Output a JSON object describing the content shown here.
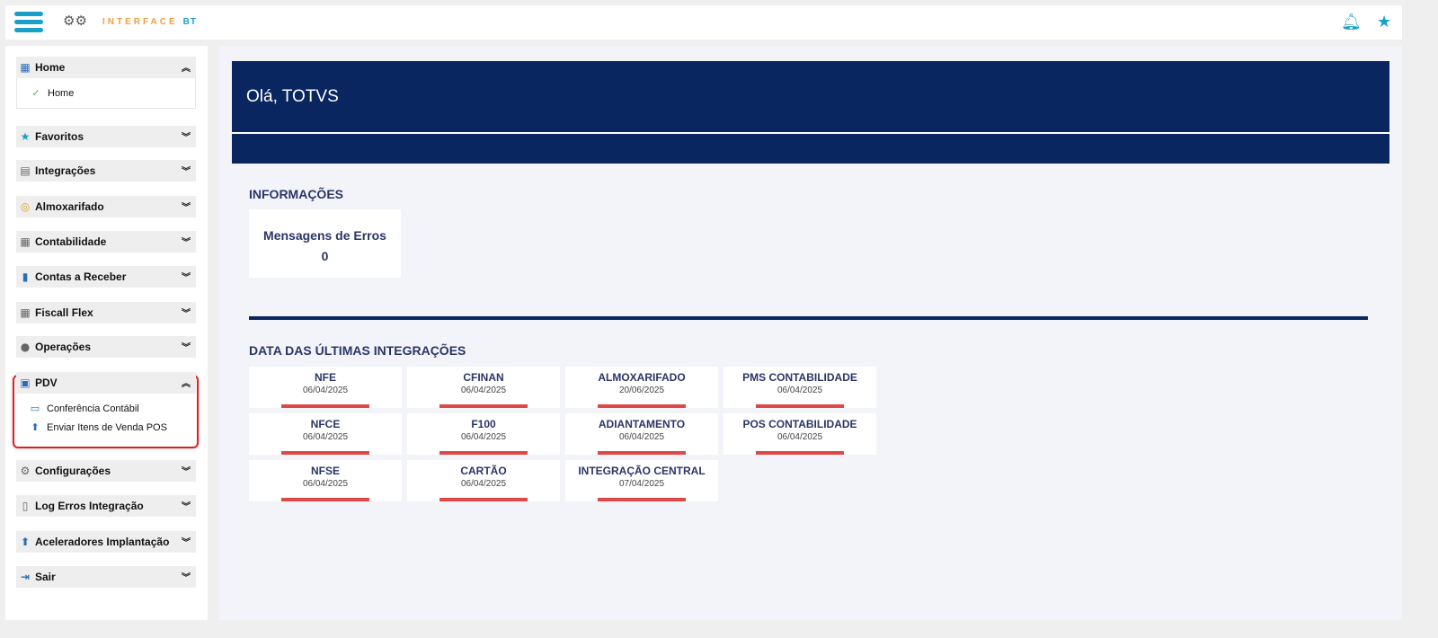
{
  "header": {
    "brand": "INTERFACE",
    "brand_suffix": "BT",
    "icons": [
      "menu-icon",
      "bell-icon",
      "star-icon"
    ]
  },
  "sidebar": {
    "sections": [
      {
        "label": "Home",
        "icon": "building-icon",
        "expanded": true,
        "items": [
          {
            "label": "Home",
            "icon": "check-icon"
          }
        ]
      },
      {
        "label": "Favoritos",
        "icon": "star-icon"
      },
      {
        "label": "Integrações",
        "icon": "table-icon"
      },
      {
        "label": "Almoxarifado",
        "icon": "coins-icon"
      },
      {
        "label": "Contabilidade",
        "icon": "calendar-icon"
      },
      {
        "label": "Contas a Receber",
        "icon": "book-icon"
      },
      {
        "label": "Fiscall Flex",
        "icon": "calculator-icon"
      },
      {
        "label": "Operações",
        "icon": "user-gear-icon"
      },
      {
        "label": "PDV",
        "icon": "bag-icon",
        "expanded": true,
        "items": [
          {
            "label": "Conferência Contábil",
            "icon": "monitor-icon"
          },
          {
            "label": "Enviar Itens de Venda POS",
            "icon": "arrow-up-circle-icon"
          }
        ]
      },
      {
        "label": "Configurações",
        "icon": "gear-icon"
      },
      {
        "label": "Log Erros Integração",
        "icon": "document-icon"
      },
      {
        "label": "Aceleradores Implantação",
        "icon": "arrow-up-circle-icon"
      },
      {
        "label": "Sair",
        "icon": "exit-icon"
      }
    ]
  },
  "main": {
    "greeting": "Olá, TOTVS",
    "info_title": "INFORMAÇÕES",
    "error_card": {
      "label": "Mensagens de Erros",
      "value": "0"
    },
    "integrations_title": "DATA DAS ÚLTIMAS INTEGRAÇÕES",
    "tiles": [
      {
        "name": "NFE",
        "date": "06/04/2025"
      },
      {
        "name": "CFINAN",
        "date": "06/04/2025"
      },
      {
        "name": "ALMOXARIFADO",
        "date": "20/06/2025"
      },
      {
        "name": "PMS CONTABILIDADE",
        "date": "06/04/2025"
      },
      {
        "name": "NFCE",
        "date": "06/04/2025"
      },
      {
        "name": "F100",
        "date": "06/04/2025"
      },
      {
        "name": "ADIANTAMENTO",
        "date": "06/04/2025"
      },
      {
        "name": "POS CONTABILIDADE",
        "date": "06/04/2025"
      },
      {
        "name": "NFSE",
        "date": "06/04/2025"
      },
      {
        "name": "CARTÃO",
        "date": "06/04/2025"
      },
      {
        "name": "INTEGRAÇÃO CENTRAL",
        "date": "07/04/2025"
      }
    ],
    "colors": {
      "banner": "#0a2660",
      "accent": "#1a9fc9",
      "status_bar": "#e04848"
    }
  }
}
